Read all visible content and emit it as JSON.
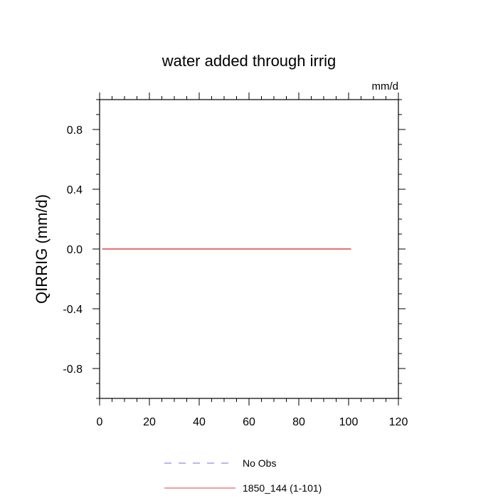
{
  "chart_data": {
    "type": "line",
    "title": "water added through irrig",
    "units": "mm/d",
    "xlabel": "",
    "ylabel": "QIRRIG  (mm/d)",
    "xlim": [
      0,
      120
    ],
    "ylim": [
      -1,
      1
    ],
    "x_ticks": [
      0,
      20,
      40,
      60,
      80,
      100,
      120
    ],
    "x_tick_labels": [
      "0",
      "20",
      "40",
      "60",
      "80",
      "100",
      "120"
    ],
    "y_ticks": [
      -0.8,
      -0.4,
      0.0,
      0.4,
      0.8
    ],
    "y_tick_labels": [
      "-0.8",
      "-0.4",
      "0.0",
      "0.4",
      "0.8"
    ],
    "grid": false,
    "legend_position": "bottom",
    "series": [
      {
        "name": "No Obs",
        "style": "dashed",
        "color": "#7070e0",
        "x": [],
        "y": []
      },
      {
        "name": "1850_144 (1-101)",
        "style": "solid",
        "color": "#e04040",
        "x": [
          1,
          101
        ],
        "y": [
          0,
          0
        ]
      }
    ]
  }
}
